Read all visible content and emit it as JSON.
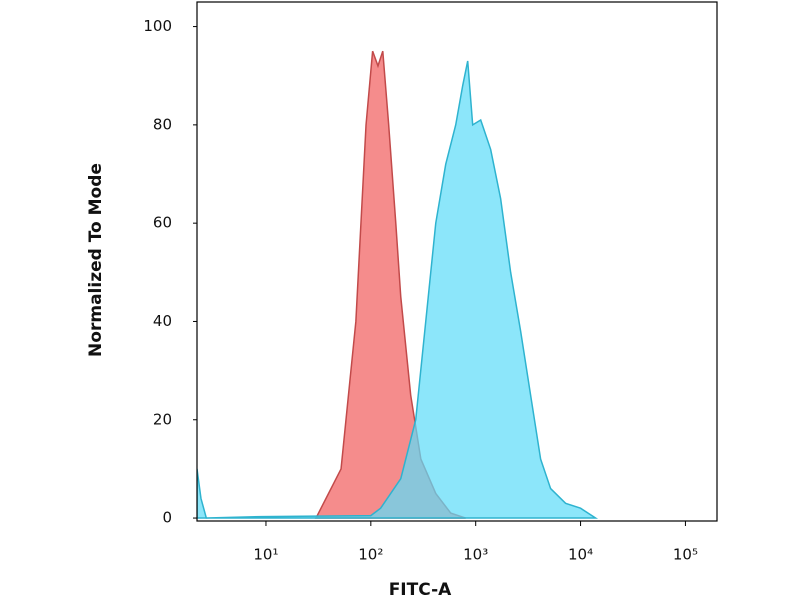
{
  "chart_data": {
    "type": "area",
    "xlabel": "FITC-A",
    "ylabel": "Normalized To Mode",
    "xscale": "log",
    "xlim": [
      2.2,
      200000
    ],
    "ylim": [
      -0.6,
      105
    ],
    "xticks": [
      {
        "value": 10,
        "label": "10¹"
      },
      {
        "value": 100,
        "label": "10²"
      },
      {
        "value": 1000,
        "label": "10³"
      },
      {
        "value": 10000,
        "label": "10⁴"
      },
      {
        "value": 100000,
        "label": "10⁵"
      }
    ],
    "yticks": [
      0,
      20,
      40,
      60,
      80,
      100
    ],
    "series": [
      {
        "color": "#f47f7f",
        "stroke": "#c24a4a",
        "x": [
          30,
          52,
          72,
          90,
          104,
          117,
          130,
          148,
          173,
          193,
          240,
          300,
          416,
          578,
          803
        ],
        "values": [
          0,
          10,
          40,
          80,
          95,
          92,
          95,
          80,
          60,
          45,
          25,
          12,
          5,
          1,
          0
        ]
      },
      {
        "color": "#5fdcf8",
        "stroke": "#2eb3cf",
        "x": [
          2.2,
          2.4,
          2.7,
          9,
          100,
          124,
          193,
          268,
          334,
          416,
          518,
          645,
          752,
          839,
          936,
          1116,
          1389,
          1729,
          2154,
          2683,
          3340,
          4160,
          5180,
          7200,
          10000,
          13900
        ],
        "values": [
          10,
          4,
          0,
          0.3,
          0.5,
          2,
          8,
          20,
          40,
          60,
          72,
          80,
          88,
          93,
          80,
          81,
          75,
          65,
          50,
          38,
          25,
          12,
          6,
          3,
          2,
          0
        ]
      }
    ]
  }
}
